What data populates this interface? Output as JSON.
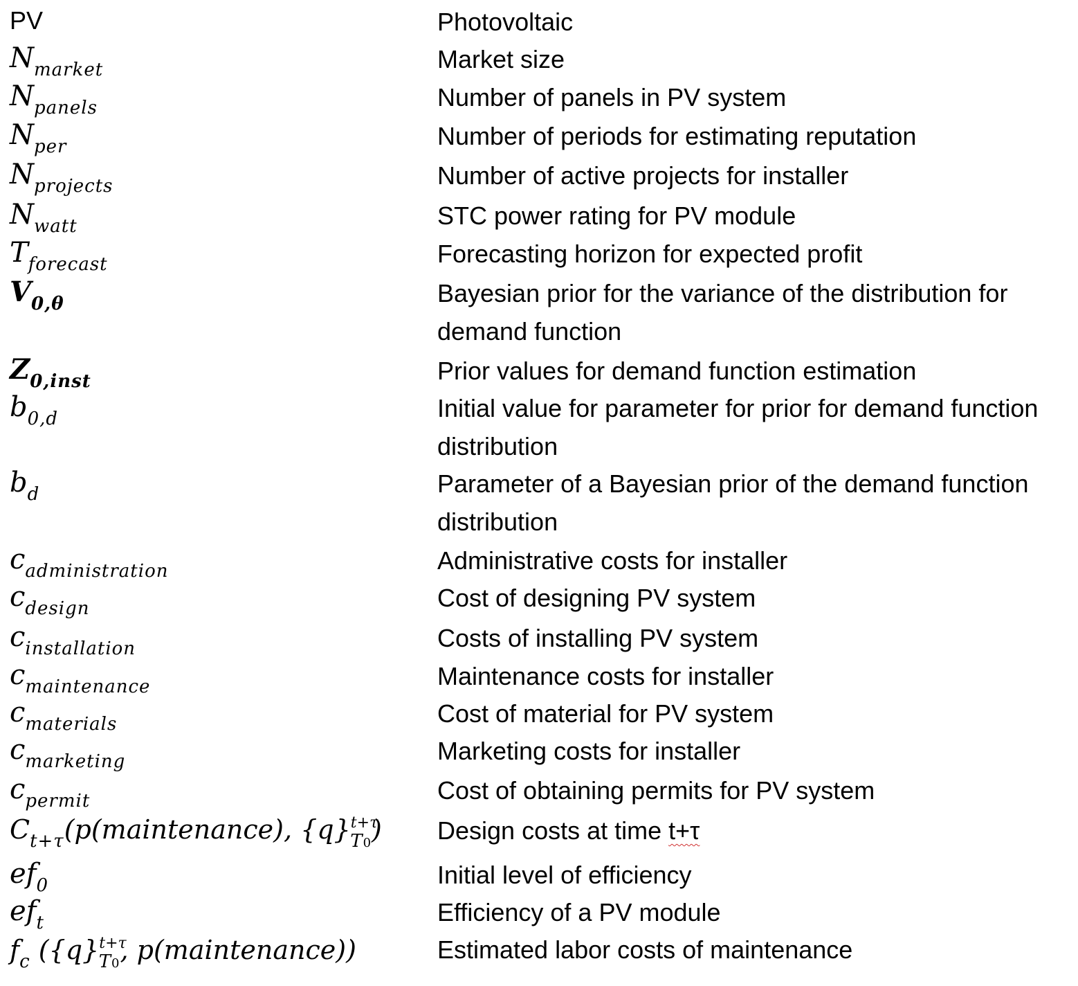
{
  "rows": [
    {
      "symbol": "PV",
      "desc": "Photovoltaic"
    },
    {
      "symbol_main": "N",
      "symbol_sub": "market",
      "desc": "Market size"
    },
    {
      "symbol_main": "N",
      "symbol_sub": "panels",
      "desc": "Number of panels in PV system"
    },
    {
      "symbol_main": "N",
      "symbol_sub": "per",
      "desc": "Number of periods for estimating reputation"
    },
    {
      "symbol_main": "N",
      "symbol_sub": "projects",
      "desc": "Number of active projects for installer"
    },
    {
      "symbol_main": "N",
      "symbol_sub": "watt",
      "desc": "STC power rating for PV module"
    },
    {
      "symbol_main": "T",
      "symbol_sub": "forecast",
      "desc": "Forecasting horizon for expected profit"
    },
    {
      "symbol_main": "V",
      "symbol_sub": "0,θ",
      "desc": "Bayesian prior for the variance of the distribution for demand function"
    },
    {
      "symbol_main": "Z",
      "symbol_sub": "0,inst",
      "desc": "Prior values for demand function estimation"
    },
    {
      "symbol_main": "b",
      "symbol_sub": "0,d",
      "desc": "Initial value for parameter for prior for demand function distribution"
    },
    {
      "symbol_main": "b",
      "symbol_sub": "d",
      "desc": "Parameter of a Bayesian prior of the demand function distribution"
    },
    {
      "symbol_main": "c",
      "symbol_sub": "administration",
      "desc": "Administrative costs for installer"
    },
    {
      "symbol_main": "c",
      "symbol_sub": "design",
      "desc": "Cost of designing PV system"
    },
    {
      "symbol_main": "c",
      "symbol_sub": "installation",
      "desc": "Costs of installing PV system"
    },
    {
      "symbol_main": "c",
      "symbol_sub": "maintenance",
      "desc": "Maintenance costs for installer"
    },
    {
      "symbol_main": "c",
      "symbol_sub": "materials",
      "desc": "Cost of material for PV system"
    },
    {
      "symbol_main": "c",
      "symbol_sub": "marketing",
      "desc": "Marketing costs for installer"
    },
    {
      "symbol_main": "c",
      "symbol_sub": "permit",
      "desc": "Cost of obtaining permits for PV system"
    },
    {
      "symbol_main": "C",
      "symbol_sub": "t+τ",
      "symbol_open": "(p(maintenance), {q}",
      "symbol_sup2": "t+τ",
      "symbol_sub2": "T",
      "symbol_sub2b": "0",
      "symbol_close": ")",
      "desc_pre": "Design costs at time ",
      "desc_mark": "t+τ"
    },
    {
      "symbol_main": "ef",
      "symbol_sub": "0",
      "desc": "Initial level of efficiency"
    },
    {
      "symbol_main": "ef",
      "symbol_sub": "t",
      "desc": "Efficiency of a PV module"
    },
    {
      "symbol_main": "f",
      "symbol_sub": "c",
      "symbol_open": "({q}",
      "symbol_sup2": "t+τ",
      "symbol_sub2": "T",
      "symbol_sub2b": "0",
      "symbol_close": ", p(maintenance))",
      "desc": "Estimated labor costs of maintenance"
    }
  ]
}
